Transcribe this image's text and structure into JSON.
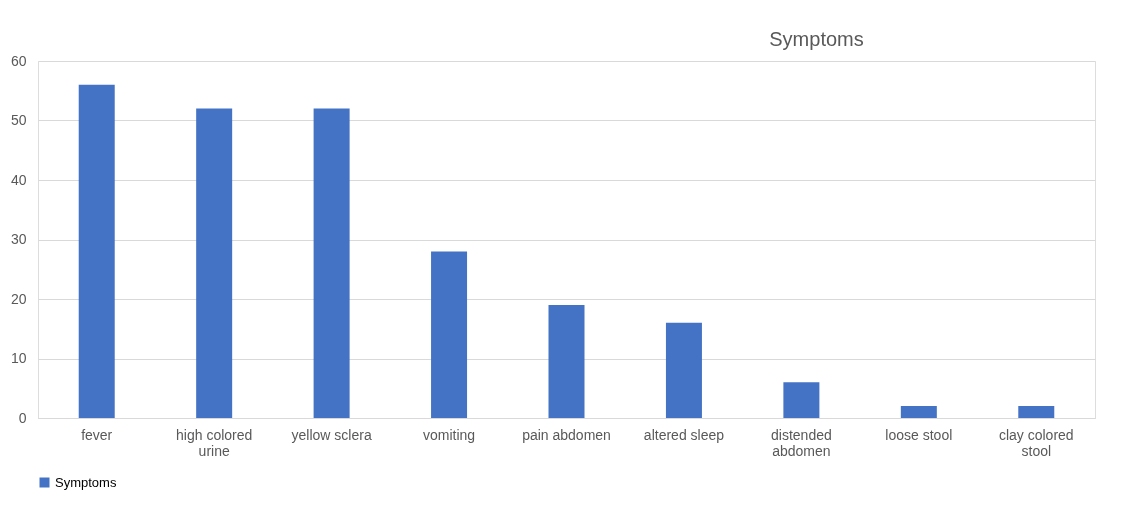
{
  "chart_data": {
    "type": "bar",
    "title": "Symptoms",
    "categories": [
      "fever",
      "high colored urine",
      "yellow sclera",
      "vomiting",
      "pain abdomen",
      "altered sleep",
      "distended abdomen",
      "loose stool",
      "clay colored stool"
    ],
    "series": [
      {
        "name": "Symptoms",
        "color": "#4472c4",
        "values": [
          56,
          52,
          52,
          28,
          19,
          16,
          6,
          2,
          2
        ]
      }
    ],
    "ylim": [
      0,
      60
    ],
    "yticks": [
      0,
      10,
      20,
      30,
      40,
      50,
      60
    ],
    "grid": "y",
    "legend": "bottom"
  }
}
